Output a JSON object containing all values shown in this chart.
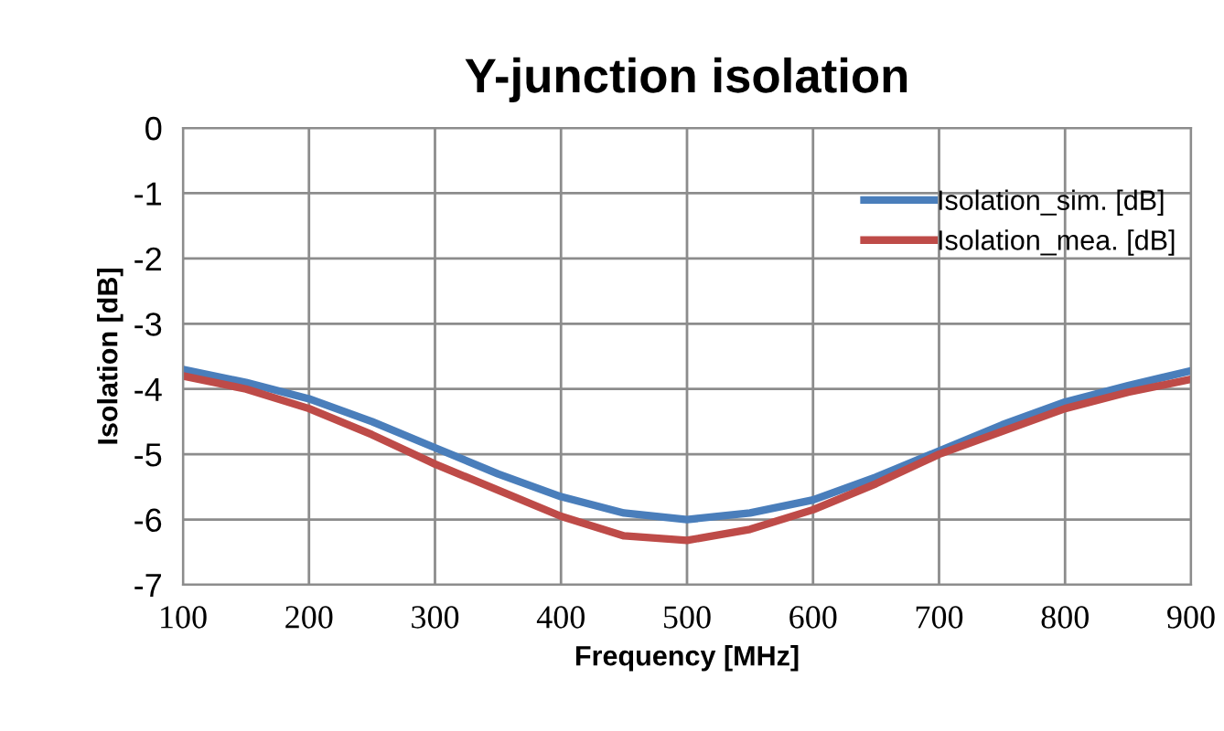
{
  "chart_data": {
    "type": "line",
    "title": "Y-junction isolation",
    "xlabel": "Frequency [MHz]",
    "ylabel": "Isolation [dB]",
    "x": [
      100,
      150,
      200,
      250,
      300,
      350,
      400,
      450,
      500,
      550,
      600,
      650,
      700,
      750,
      800,
      850,
      900
    ],
    "series": [
      {
        "name": "Isolation_sim. [dB]",
        "color": "#4a7ebb",
        "values": [
          -3.7,
          -3.9,
          -4.15,
          -4.5,
          -4.9,
          -5.3,
          -5.65,
          -5.9,
          -6.0,
          -5.9,
          -5.7,
          -5.35,
          -4.95,
          -4.55,
          -4.2,
          -3.95,
          -3.72
        ]
      },
      {
        "name": "Isolation_mea. [dB]",
        "color": "#be4b48",
        "values": [
          -3.8,
          -4.0,
          -4.3,
          -4.7,
          -5.15,
          -5.55,
          -5.95,
          -6.25,
          -6.32,
          -6.15,
          -5.85,
          -5.45,
          -5.0,
          -4.65,
          -4.3,
          -4.05,
          -3.85
        ]
      }
    ],
    "xlim": [
      100,
      900
    ],
    "xticks": [
      100,
      200,
      300,
      400,
      500,
      600,
      700,
      800,
      900
    ],
    "ylim": [
      -7,
      0
    ],
    "yticks": [
      -7,
      -6,
      -5,
      -4,
      -3,
      -2,
      -1,
      0
    ],
    "grid": true,
    "legend": "top right",
    "marker": "none",
    "line_style": "solid"
  }
}
